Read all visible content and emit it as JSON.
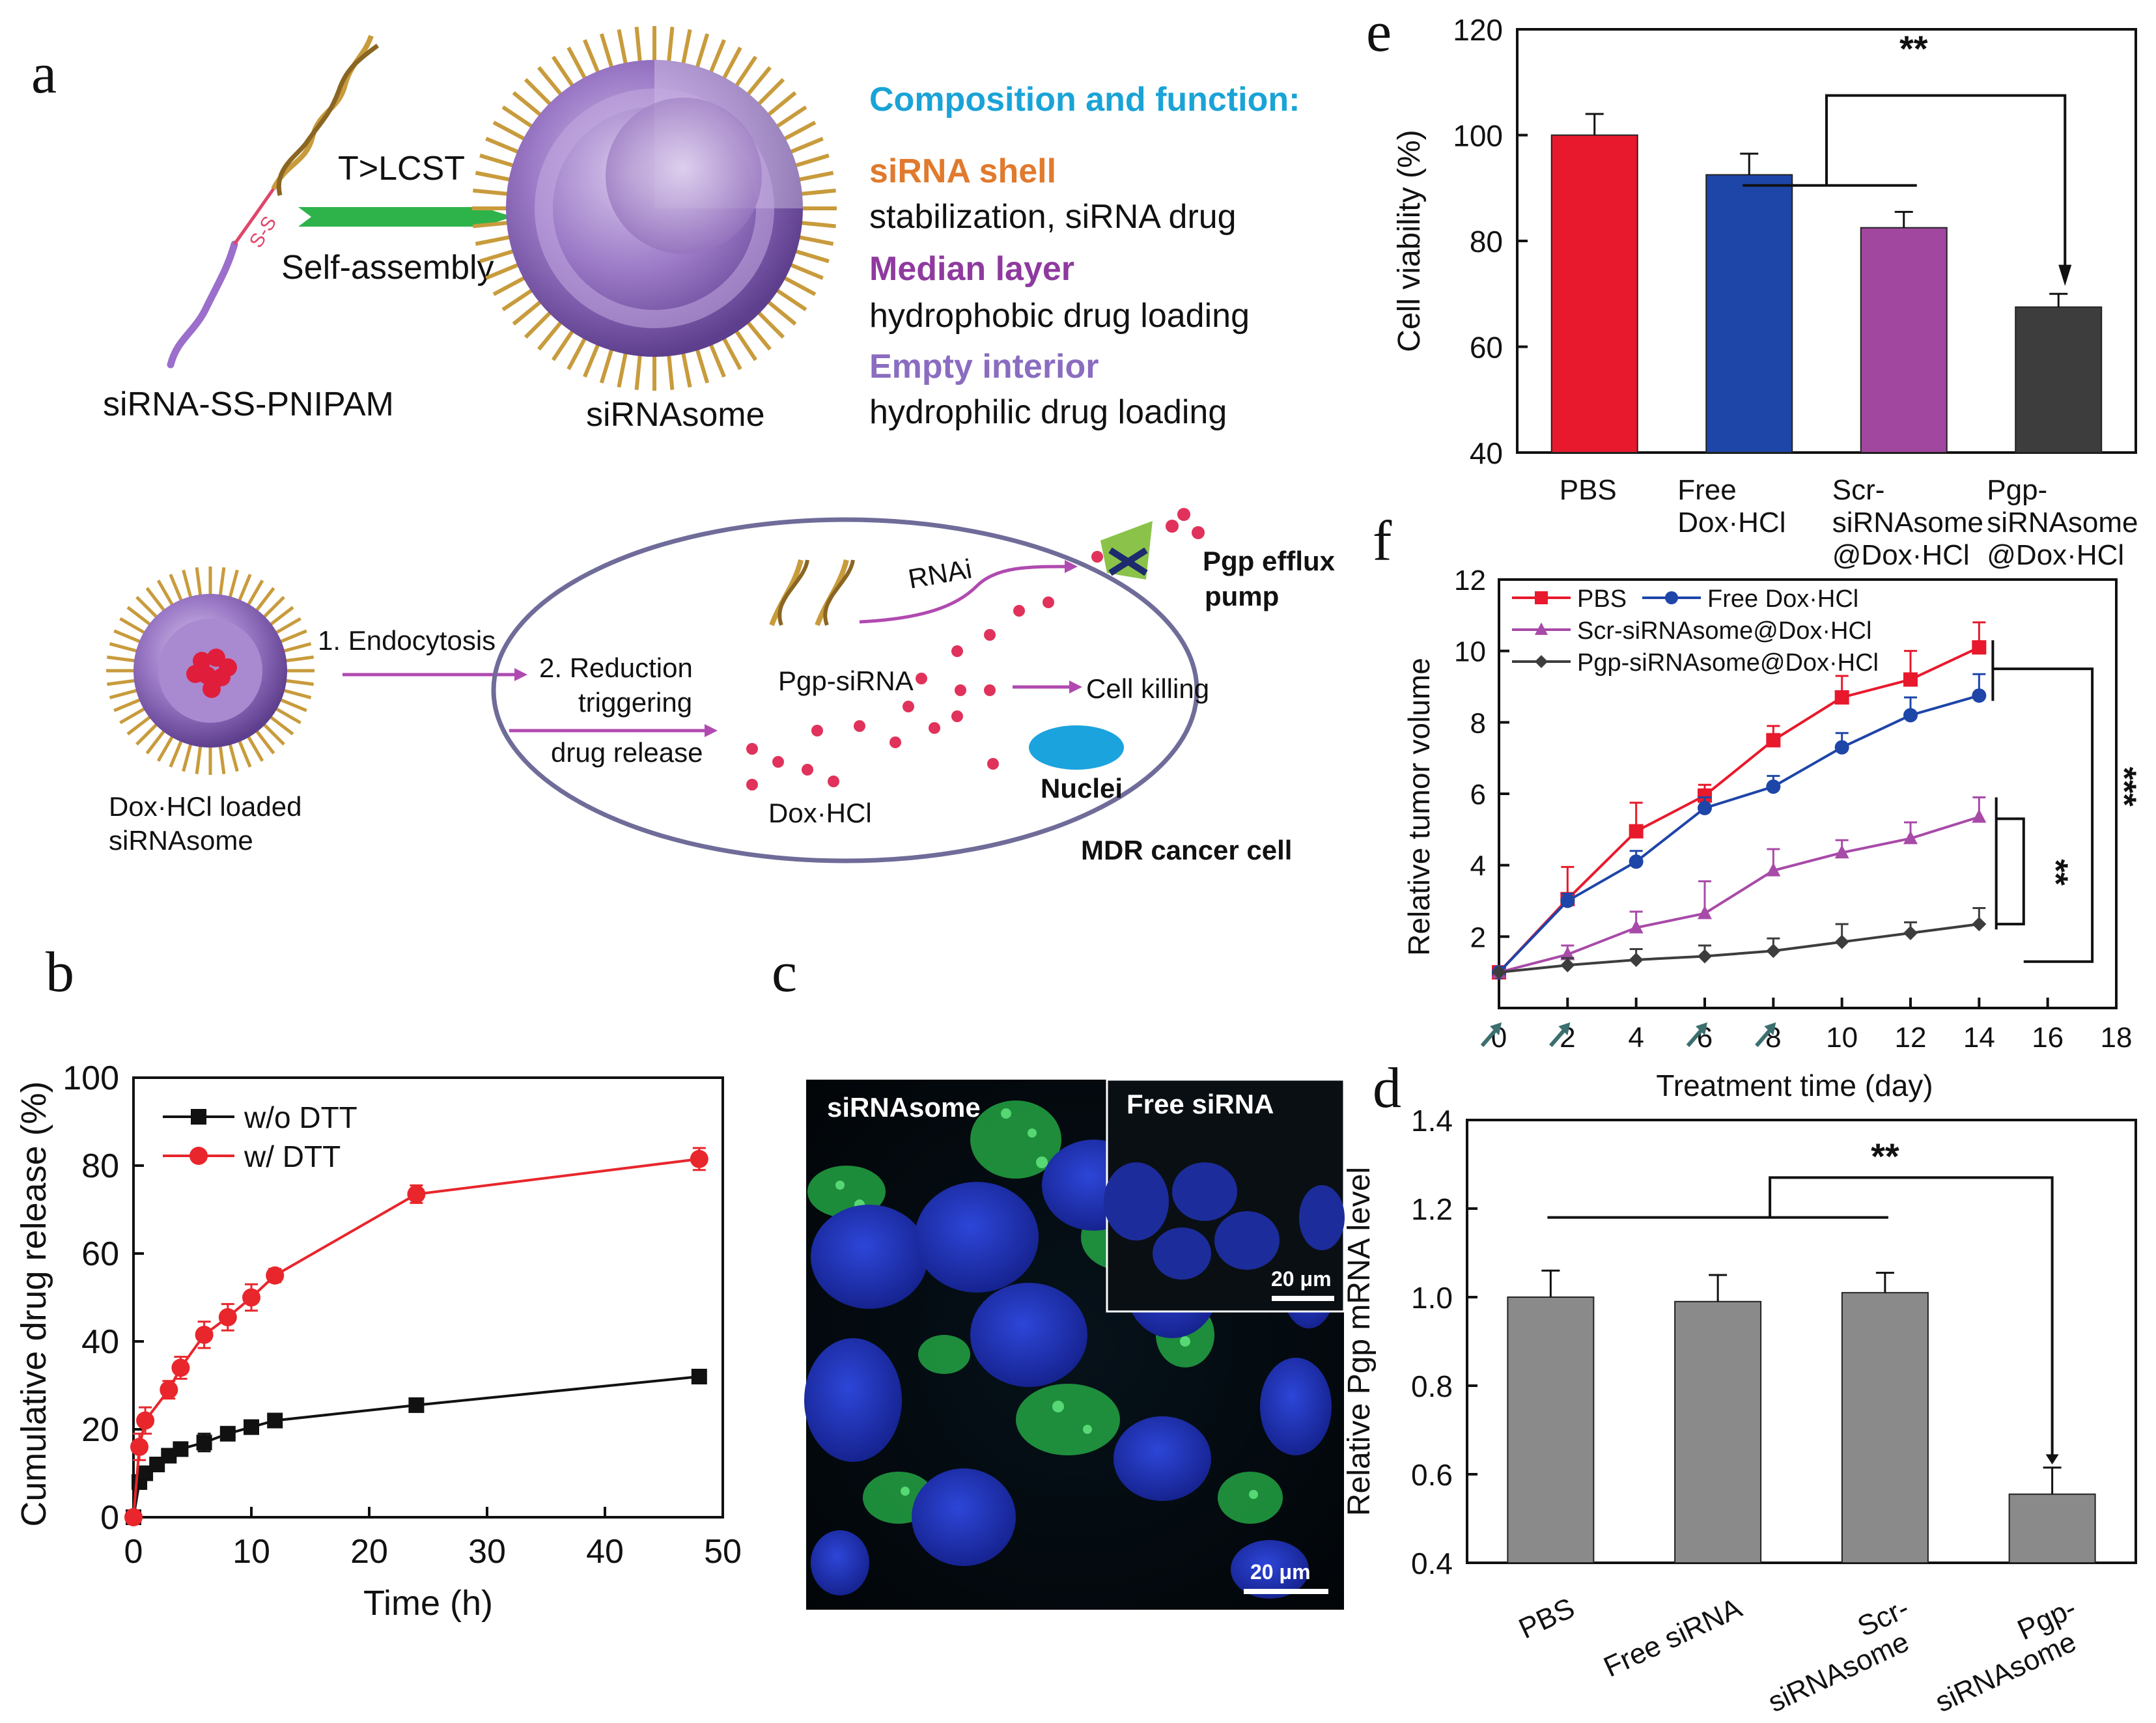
{
  "panel_letters": {
    "a": "a",
    "b": "b",
    "c": "c",
    "d": "d",
    "e": "e",
    "f": "f"
  },
  "scheme": {
    "polymer_label": "siRNA-SS-PNIPAM",
    "ss_label": "S-S",
    "arrow_top": "T>LCST",
    "arrow_bottom": "Self-assembly",
    "vesicle_label": "siRNAsome",
    "composition_title": "Composition  and function:",
    "shell_title": "siRNA  shell",
    "shell_desc": "stabilization, siRNA drug",
    "median_title": "Median layer",
    "median_desc": "hydrophobic  drug  loading",
    "interior_title": "Empty  interior",
    "interior_desc": "hydrophilic drug loading",
    "loaded_label_1": "Dox·HCl loaded",
    "loaded_label_2": "siRNAsome",
    "step1": "1. Endocytosis",
    "step2_1": "2. Reduction",
    "step2_2": "triggering",
    "step2_3": "drug release",
    "pgp_sirna": "Pgp-siRNA",
    "rnai": "RNAi",
    "pump_1": "Pgp efflux",
    "pump_2": "pump",
    "cell_killing": "Cell killing",
    "dox": "Dox·HCl",
    "nuclei": "Nuclei",
    "cell": "MDR cancer cell",
    "colors": {
      "title": "#1aa3d6",
      "shell": "#e07a2e",
      "median": "#8e3a9e",
      "interior": "#8a6cc0",
      "arrow": "#2db34a"
    }
  },
  "micrograph": {
    "main_label": "siRNAsome",
    "inset_label": "Free siRNA",
    "inset_scale": "20 μm",
    "main_scale": "20 μm"
  },
  "chart_data": [
    {
      "panel": "b",
      "type": "line",
      "title": "",
      "xlabel": "Time (h)",
      "ylabel": "Cumulative drug release (%)",
      "xlim": [
        0,
        50
      ],
      "ylim": [
        0,
        100
      ],
      "xticks": [
        0,
        10,
        20,
        30,
        40,
        50
      ],
      "yticks": [
        0,
        20,
        40,
        60,
        80,
        100
      ],
      "series": [
        {
          "name": "w/o DTT",
          "color": "#111111",
          "marker": "square",
          "x": [
            0,
            0.5,
            1,
            2,
            3,
            4,
            6,
            8,
            10,
            12,
            24,
            48
          ],
          "y": [
            0,
            8,
            10,
            12,
            14,
            15.5,
            17,
            19,
            20.5,
            22,
            25.5,
            32
          ],
          "err": [
            0,
            1,
            1,
            1,
            1,
            1,
            2,
            1,
            1,
            1,
            1,
            1
          ]
        },
        {
          "name": "w/ DTT",
          "color": "#e8262b",
          "marker": "circle",
          "x": [
            0,
            0.5,
            1,
            3,
            4,
            6,
            8,
            10,
            12,
            24,
            48
          ],
          "y": [
            0,
            16,
            22,
            29,
            34,
            41.5,
            45.5,
            50,
            55,
            73.5,
            81.5
          ],
          "err": [
            0,
            3,
            3,
            2,
            2.5,
            3,
            3,
            3,
            1.5,
            2,
            2.5
          ]
        }
      ]
    },
    {
      "panel": "e",
      "type": "bar",
      "title": "",
      "xlabel": "",
      "ylabel": "Cell viability (%)",
      "ylim": [
        40,
        120
      ],
      "yticks": [
        40,
        60,
        80,
        100,
        120
      ],
      "categories": [
        [
          "PBS"
        ],
        [
          "Free",
          "Dox·HCl"
        ],
        [
          "Scr-",
          "siRNAsome",
          "@Dox·HCl"
        ],
        [
          "Pgp-",
          "siRNAsome",
          "@Dox·HCl"
        ]
      ],
      "values": [
        100,
        92.5,
        82.5,
        67.5
      ],
      "errors": [
        4,
        4,
        3,
        2.5
      ],
      "colors": [
        "#e8192c",
        "#1e45a8",
        "#a1479f",
        "#3d3d3d"
      ],
      "significance": "**"
    },
    {
      "panel": "f",
      "type": "line",
      "title": "",
      "xlabel": "Treatment time (day)",
      "ylabel": "Relative tumor volume",
      "xlim": [
        0,
        18
      ],
      "ylim": [
        0,
        12
      ],
      "xticks": [
        0,
        2,
        4,
        6,
        8,
        10,
        12,
        14,
        16,
        18
      ],
      "yticks": [
        2,
        4,
        6,
        8,
        10,
        12
      ],
      "injection_days": [
        0,
        2,
        6,
        8
      ],
      "series": [
        {
          "name": "PBS",
          "color": "#e8192c",
          "marker": "square",
          "x": [
            0,
            2,
            4,
            6,
            8,
            10,
            12,
            14
          ],
          "y": [
            1,
            3.05,
            4.95,
            5.95,
            7.5,
            8.7,
            9.2,
            10.1
          ],
          "err": [
            0,
            0.9,
            0.8,
            0.3,
            0.4,
            0.6,
            0.8,
            0.7
          ]
        },
        {
          "name": "Free Dox·HCl",
          "color": "#1e45a8",
          "marker": "circle",
          "x": [
            0,
            2,
            4,
            6,
            8,
            10,
            12,
            14
          ],
          "y": [
            1,
            3.0,
            4.1,
            5.6,
            6.2,
            7.3,
            8.2,
            8.75
          ],
          "err": [
            0,
            0.2,
            0.3,
            0.3,
            0.3,
            0.4,
            0.5,
            0.6
          ]
        },
        {
          "name": "Scr-siRNAsome@Dox·HCl",
          "color": "#a84aa8",
          "marker": "triangle",
          "x": [
            0,
            2,
            4,
            6,
            8,
            10,
            12,
            14
          ],
          "y": [
            1,
            1.5,
            2.25,
            2.65,
            3.85,
            4.35,
            4.75,
            5.35
          ],
          "err": [
            0,
            0.25,
            0.45,
            0.9,
            0.6,
            0.35,
            0.45,
            0.55
          ]
        },
        {
          "name": "Pgp-siRNAsome@Dox·HCl",
          "color": "#3d3d3d",
          "marker": "diamond",
          "x": [
            0,
            2,
            4,
            6,
            8,
            10,
            12,
            14
          ],
          "y": [
            1,
            1.2,
            1.35,
            1.45,
            1.6,
            1.85,
            2.1,
            2.35
          ],
          "err": [
            0,
            0.2,
            0.3,
            0.3,
            0.35,
            0.5,
            0.3,
            0.45
          ]
        }
      ],
      "significance": [
        "**",
        "***"
      ]
    },
    {
      "panel": "d",
      "type": "bar",
      "title": "",
      "xlabel": "",
      "ylabel": "Relative Pgp mRNA level",
      "ylim": [
        0.4,
        1.4
      ],
      "yticks": [
        0.4,
        0.6,
        0.8,
        1.0,
        1.2,
        1.4
      ],
      "categories": [
        [
          "PBS"
        ],
        [
          "Free siRNA"
        ],
        [
          "Scr-",
          "siRNAsome"
        ],
        [
          "Pgp-",
          "siRNAsome"
        ]
      ],
      "values": [
        1.0,
        0.99,
        1.01,
        0.555
      ],
      "errors": [
        0.06,
        0.06,
        0.045,
        0.06
      ],
      "colors": [
        "#8a8a8a",
        "#8a8a8a",
        "#8a8a8a",
        "#8a8a8a"
      ],
      "significance": "**"
    }
  ]
}
